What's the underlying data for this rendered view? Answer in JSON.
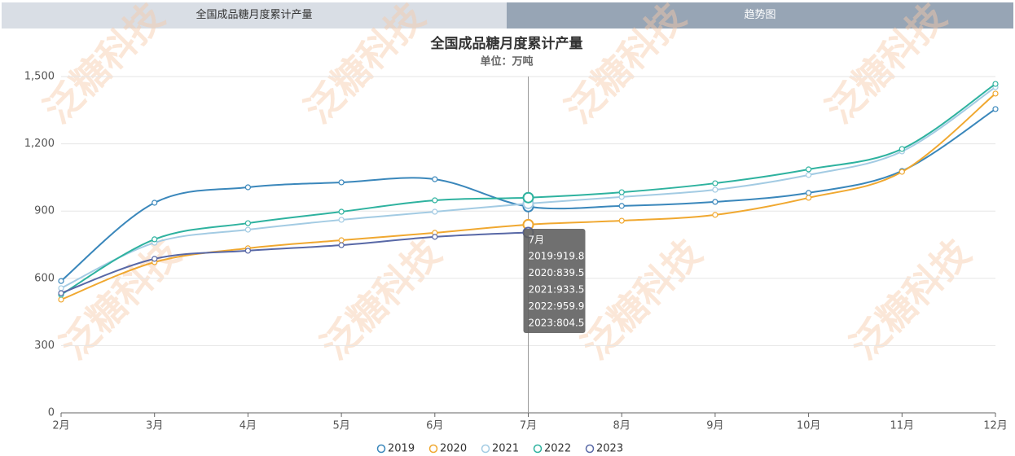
{
  "tabs": [
    "全国成品糖月度累计产量",
    "趋势图"
  ],
  "watermark": "泛糖科技",
  "chart_data": {
    "type": "line",
    "title": "全国成品糖月度累计产量",
    "subtitle": "单位：万吨",
    "categories": [
      "2月",
      "3月",
      "4月",
      "5月",
      "6月",
      "7月",
      "8月",
      "9月",
      "10月",
      "11月",
      "12月"
    ],
    "series": [
      {
        "name": "2019",
        "color": "#3a87bb",
        "values": [
          588,
          937,
          1006,
          1028,
          1042,
          919.8,
          923,
          941,
          981,
          1079,
          1355
        ]
      },
      {
        "name": "2020",
        "color": "#f0a830",
        "values": [
          505,
          672,
          734,
          770,
          803,
          839.5,
          857,
          883,
          959,
          1075,
          1424
        ]
      },
      {
        "name": "2021",
        "color": "#a3cbe3",
        "values": [
          556,
          759,
          817,
          861,
          897,
          933.5,
          963,
          995,
          1061,
          1166,
          1453
        ]
      },
      {
        "name": "2022",
        "color": "#2eb29f",
        "values": [
          527,
          774,
          846,
          897,
          948,
          959.9,
          984,
          1024,
          1086,
          1177,
          1467
        ]
      },
      {
        "name": "2023",
        "color": "#5868a6",
        "values": [
          534,
          687,
          723,
          748,
          785,
          804.5,
          null,
          null,
          null,
          null,
          null
        ]
      }
    ],
    "ylim": [
      0,
      1500
    ],
    "yticks": [
      0,
      300,
      600,
      900,
      {
        "value": 1200,
        "label": "1,200"
      },
      {
        "value": 1500,
        "label": "1,500"
      }
    ],
    "grid": true,
    "legend": "bottom",
    "tooltip": {
      "index": 5,
      "title": "7月",
      "lines": [
        "2019:919.8",
        "2020:839.5",
        "2021:933.5",
        "2022:959.9",
        "2023:804.5"
      ]
    }
  }
}
